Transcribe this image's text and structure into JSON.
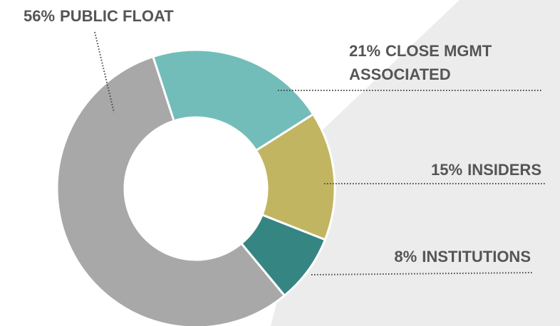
{
  "chart_data": {
    "type": "donut",
    "categories": [
      "CLOSE MGMT ASSOCIATED",
      "INSIDERS",
      "INSTITUTIONS",
      "PUBLIC FLOAT"
    ],
    "values": [
      21,
      15,
      8,
      56
    ],
    "value_labels": [
      "21%",
      "15%",
      "8%",
      "56%"
    ],
    "colors": [
      "#72bdb9",
      "#c2b562",
      "#358583",
      "#a8a8a8"
    ]
  }
}
